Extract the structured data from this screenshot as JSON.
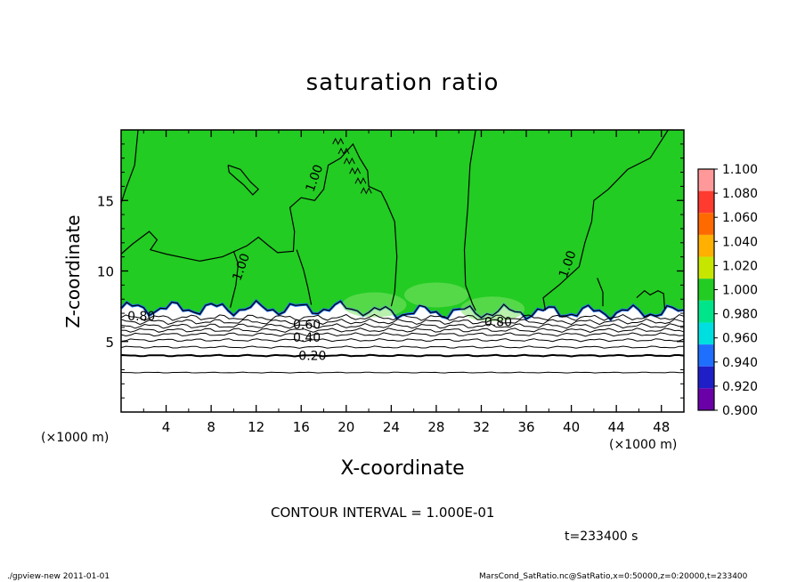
{
  "chart_data": {
    "type": "heatmap",
    "title": "saturation ratio",
    "xlabel": "X-coordinate",
    "ylabel": "Z-coordinate",
    "x_unit_note": "(×1000 m)",
    "xlim": [
      0,
      50
    ],
    "ylim": [
      0,
      20
    ],
    "x_ticks": [
      4,
      8,
      12,
      16,
      20,
      24,
      28,
      32,
      36,
      40,
      44,
      48
    ],
    "y_ticks": [
      5,
      10,
      15
    ],
    "colorbar": {
      "levels": [
        "1.100",
        "1.080",
        "1.060",
        "1.040",
        "1.020",
        "1.000",
        "0.980",
        "0.960",
        "0.940",
        "0.920",
        "0.900"
      ],
      "colors": [
        "#ff9999",
        "#ff3b2f",
        "#ff6a00",
        "#ffb000",
        "#c6e600",
        "#22cc22",
        "#00e58a",
        "#00dfe0",
        "#1f6fff",
        "#1f1fc8",
        "#6a00a8"
      ]
    },
    "field_colors": {
      "upper": "#22cc22",
      "lower": "#ffffff",
      "boundary": "#1f6fff"
    },
    "contour_labels": [
      {
        "text": "1.00",
        "x": 17.5,
        "z": 16.8
      },
      {
        "text": "1.00",
        "x": 11.0,
        "z": 10.5
      },
      {
        "text": "1.00",
        "x": 40.0,
        "z": 10.7
      },
      {
        "text": "0.80",
        "x": 1.8,
        "z": 6.8
      },
      {
        "text": "0.60",
        "x": 16.5,
        "z": 6.2
      },
      {
        "text": "0.40",
        "x": 16.5,
        "z": 5.3
      },
      {
        "text": "0.20",
        "x": 17.0,
        "z": 4.0
      },
      {
        "text": "0.80",
        "x": 33.5,
        "z": 6.4
      }
    ],
    "contour_interval": "CONTOUR INTERVAL = 1.000E-01",
    "time": "t=233400 s"
  },
  "footer": {
    "left": "./gpview-new   2011-01-01",
    "right": "MarsCond_SatRatio.nc@SatRatio,x=0:50000,z=0:20000,t=233400"
  }
}
